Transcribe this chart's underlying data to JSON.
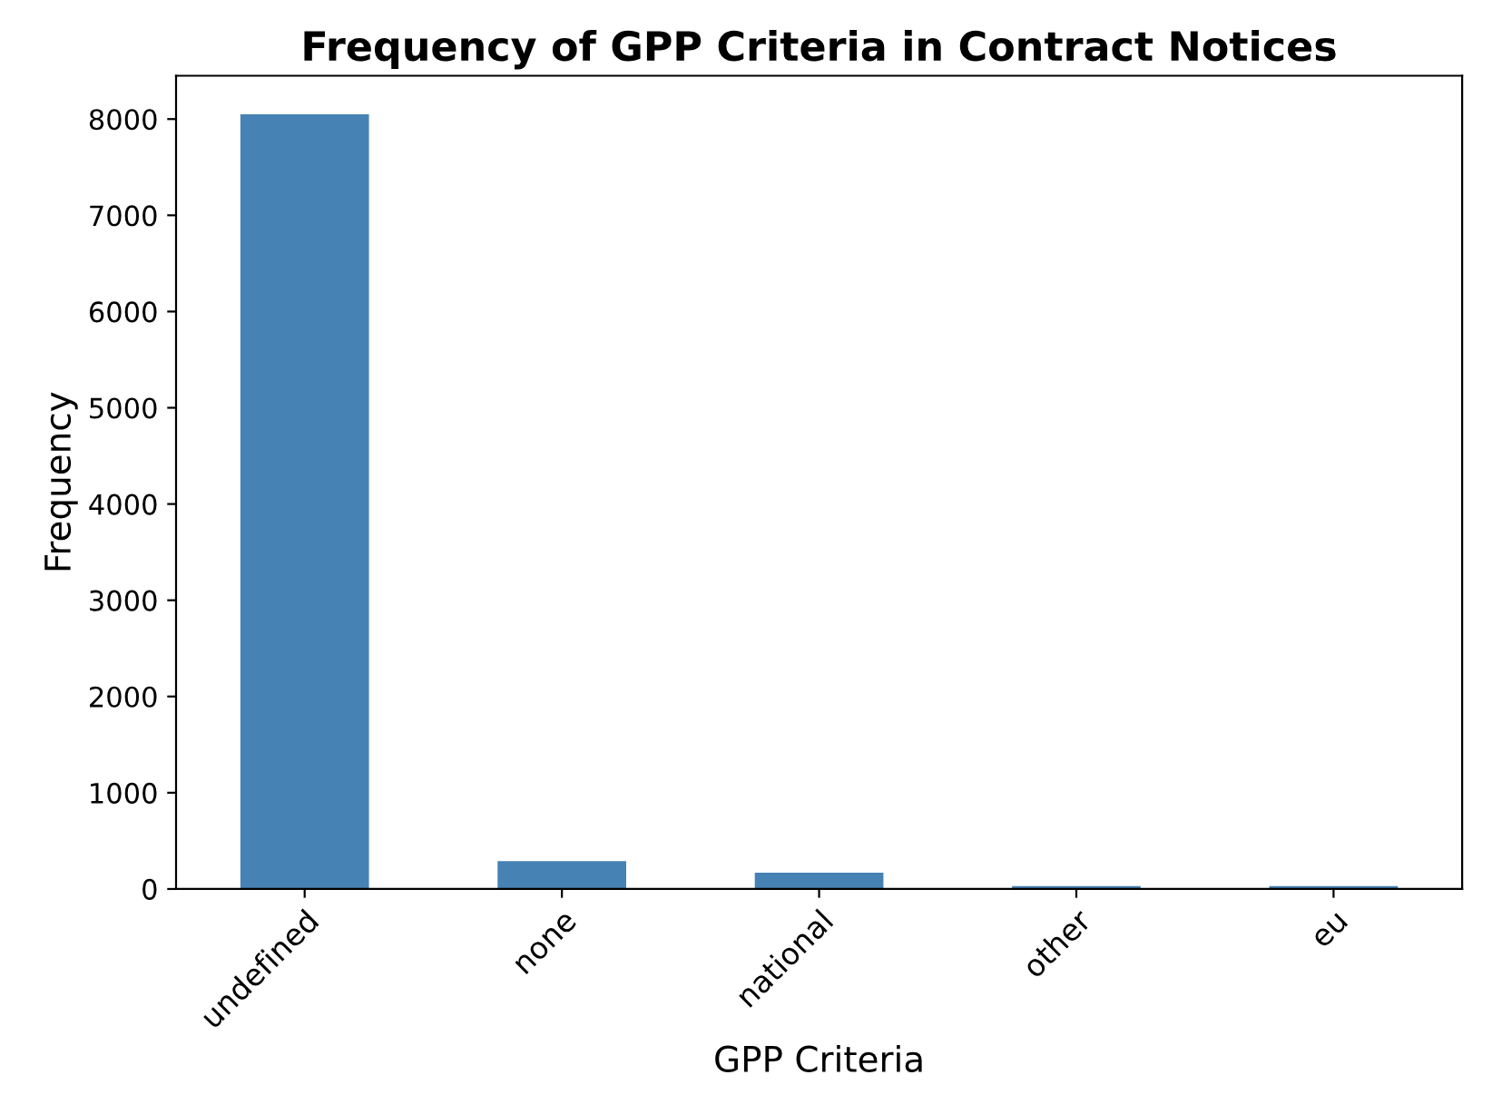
{
  "chart_data": {
    "type": "bar",
    "title": "Frequency of GPP Criteria in Contract Notices",
    "xlabel": "GPP Criteria",
    "ylabel": "Frequency",
    "categories": [
      "undefined",
      "none",
      "national",
      "other",
      "eu"
    ],
    "values": [
      8050,
      290,
      170,
      30,
      30
    ],
    "color": "#4682b4",
    "ylim": [
      0,
      8450
    ],
    "yticks": [
      0,
      1000,
      2000,
      3000,
      4000,
      5000,
      6000,
      7000,
      8000
    ],
    "grid": false,
    "legend": false
  }
}
